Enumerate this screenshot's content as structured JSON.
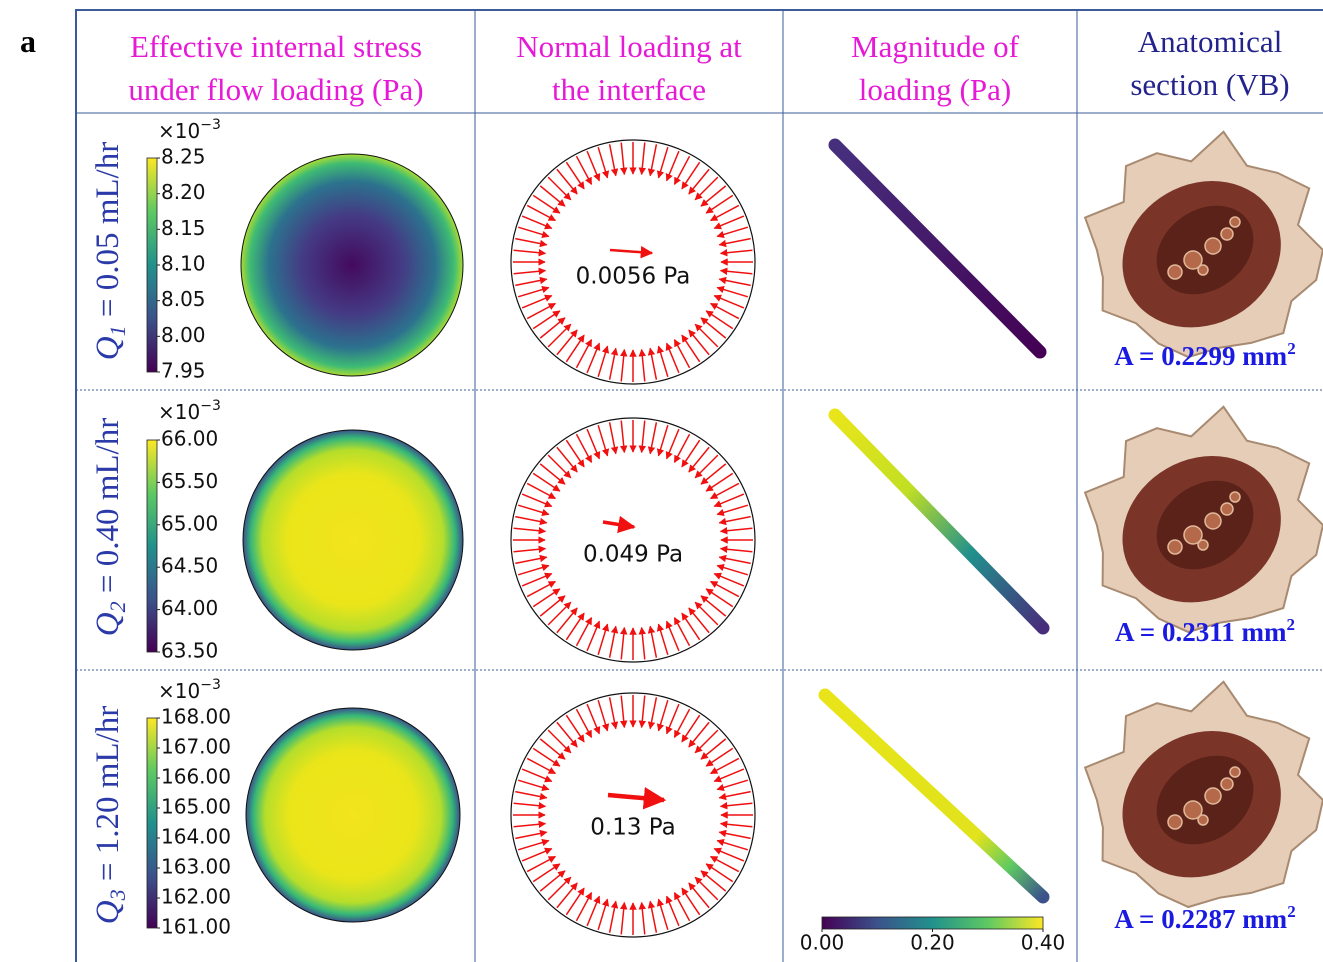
{
  "panel_label": "a",
  "columns": [
    {
      "header": [
        "Effective internal stress",
        "under flow loading (Pa)"
      ]
    },
    {
      "header": [
        "Normal loading at",
        "the interface"
      ]
    },
    {
      "header": [
        "Magnitude of",
        "loading (Pa)"
      ]
    },
    {
      "header": [
        "Anatomical",
        "section (VB)"
      ]
    }
  ],
  "rows": [
    {
      "label": {
        "symbol": "Q",
        "subscript": "1",
        "text": " = 0.05 mL/hr"
      },
      "colorbar": {
        "exponent_base": "×10",
        "exponent": "−3",
        "ticks": [
          "8.25",
          "8.20",
          "8.15",
          "8.10",
          "8.05",
          "8.00",
          "7.95"
        ]
      },
      "arrow_label": "0.0056 Pa",
      "area": {
        "text": "A = 0.2299 mm",
        "superscript": "2"
      }
    },
    {
      "label": {
        "symbol": "Q",
        "subscript": "2",
        "text": " = 0.40 mL/hr"
      },
      "colorbar": {
        "exponent_base": "×10",
        "exponent": "−3",
        "ticks": [
          "66.00",
          "65.50",
          "65.00",
          "64.50",
          "64.00",
          "63.50"
        ]
      },
      "arrow_label": "0.049 Pa",
      "area": {
        "text": "A = 0.2311 mm",
        "superscript": "2"
      }
    },
    {
      "label": {
        "symbol": "Q",
        "subscript": "3",
        "text": " = 1.20 mL/hr"
      },
      "colorbar": {
        "exponent_base": "×10",
        "exponent": "−3",
        "ticks": [
          "168.00",
          "167.00",
          "166.00",
          "165.00",
          "164.00",
          "163.00",
          "162.00",
          "161.00"
        ]
      },
      "arrow_label": "0.13 Pa",
      "area": {
        "text": "A = 0.2287 mm",
        "superscript": "2"
      }
    }
  ],
  "magnitude_colorbar": {
    "ticks": [
      "0.00",
      "0.20",
      "0.40"
    ]
  }
}
